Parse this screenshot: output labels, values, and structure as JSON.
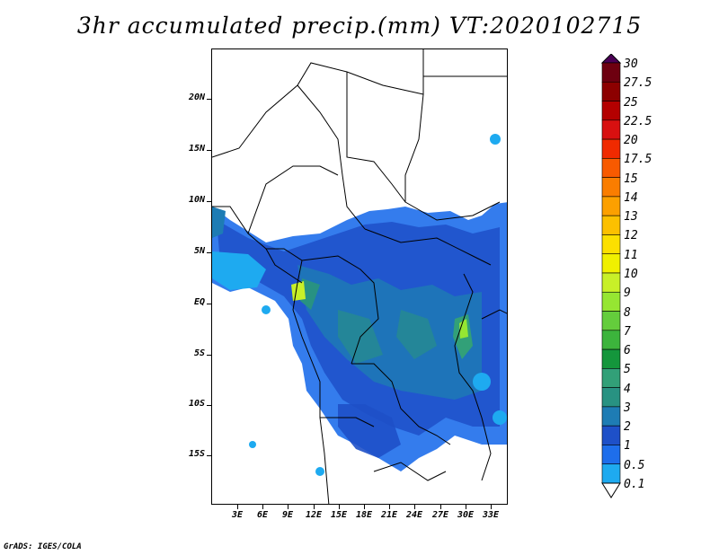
{
  "title": "3hr accumulated precip.(mm) VT:2020102715",
  "footer": "GrADS: IGES/COLA",
  "lat_ticks": [
    "20N",
    "15N",
    "10N",
    "5N",
    "EQ",
    "5S",
    "10S",
    "15S"
  ],
  "lon_ticks": [
    "3E",
    "6E",
    "9E",
    "12E",
    "15E",
    "18E",
    "21E",
    "24E",
    "27E",
    "30E",
    "33E"
  ],
  "colorbar": {
    "levels": [
      "30",
      "27.5",
      "25",
      "22.5",
      "20",
      "17.5",
      "15",
      "14",
      "13",
      "12",
      "11",
      "10",
      "9",
      "8",
      "7",
      "6",
      "5",
      "4",
      "3",
      "2",
      "1",
      "0.5",
      "0.1"
    ],
    "colors": [
      "#4b0055",
      "#6e0010",
      "#8c0000",
      "#b40000",
      "#d81010",
      "#f02a00",
      "#f85a00",
      "#fa7d00",
      "#fca000",
      "#fcc000",
      "#fce000",
      "#f0f000",
      "#c8f028",
      "#96e632",
      "#64cd3c",
      "#3cb43c",
      "#14963c",
      "#32a078",
      "#289282",
      "#1e7cb4",
      "#1e50c8",
      "#1e6eeb",
      "#1eaaf0",
      "#ffffff"
    ]
  }
}
